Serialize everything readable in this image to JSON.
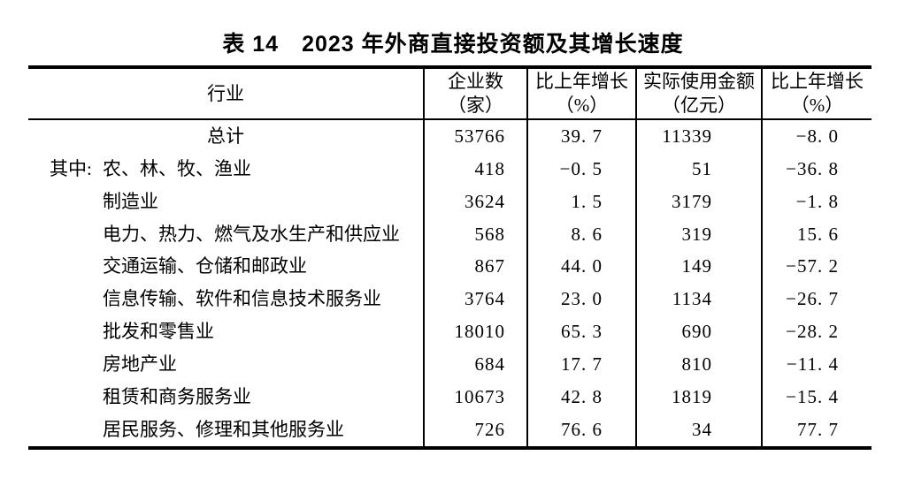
{
  "title": "表 14　2023 年外商直接投资额及其增长速度",
  "table": {
    "columns": [
      {
        "line1": "行业",
        "line2": ""
      },
      {
        "line1": "企业数",
        "line2": "（家）"
      },
      {
        "line1": "比上年增长",
        "line2": "（%）"
      },
      {
        "line1": "实际使用金额",
        "line2": "（亿元）"
      },
      {
        "line1": "比上年增长",
        "line2": "（%）"
      }
    ],
    "rows": [
      {
        "prefix": "",
        "industry": "总计",
        "enterprises": "53766",
        "enterprises_growth": "39. 7",
        "amount": "11339",
        "amount_growth": "−8. 0"
      },
      {
        "prefix": "其中:",
        "industry": "农、林、牧、渔业",
        "enterprises": "418",
        "enterprises_growth": "−0. 5",
        "amount": "51",
        "amount_growth": "−36. 8"
      },
      {
        "prefix": "",
        "industry": "制造业",
        "enterprises": "3624",
        "enterprises_growth": "1. 5",
        "amount": "3179",
        "amount_growth": "−1. 8"
      },
      {
        "prefix": "",
        "industry": "电力、热力、燃气及水生产和供应业",
        "enterprises": "568",
        "enterprises_growth": "8. 6",
        "amount": "319",
        "amount_growth": "15. 6"
      },
      {
        "prefix": "",
        "industry": "交通运输、仓储和邮政业",
        "enterprises": "867",
        "enterprises_growth": "44. 0",
        "amount": "149",
        "amount_growth": "−57. 2"
      },
      {
        "prefix": "",
        "industry": "信息传输、软件和信息技术服务业",
        "enterprises": "3764",
        "enterprises_growth": "23. 0",
        "amount": "1134",
        "amount_growth": "−26. 7"
      },
      {
        "prefix": "",
        "industry": "批发和零售业",
        "enterprises": "18010",
        "enterprises_growth": "65. 3",
        "amount": "690",
        "amount_growth": "−28. 2"
      },
      {
        "prefix": "",
        "industry": "房地产业",
        "enterprises": "684",
        "enterprises_growth": "17. 7",
        "amount": "810",
        "amount_growth": "−11. 4"
      },
      {
        "prefix": "",
        "industry": "租赁和商务服务业",
        "enterprises": "10673",
        "enterprises_growth": "42. 8",
        "amount": "1819",
        "amount_growth": "−15. 4"
      },
      {
        "prefix": "",
        "industry": "居民服务、修理和其他服务业",
        "enterprises": "726",
        "enterprises_growth": "76. 6",
        "amount": "34",
        "amount_growth": "77. 7"
      }
    ]
  }
}
